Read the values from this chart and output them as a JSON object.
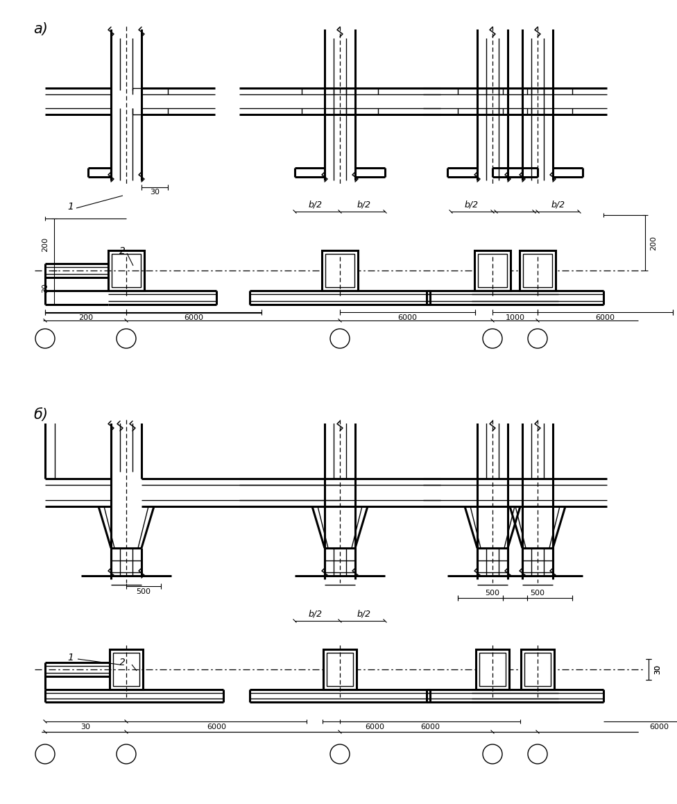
{
  "label_a": "а)",
  "label_b": "б)",
  "lw_thick": 2.2,
  "lw_thin": 1.0,
  "lw_dim": 0.8,
  "bg": "#ffffff"
}
